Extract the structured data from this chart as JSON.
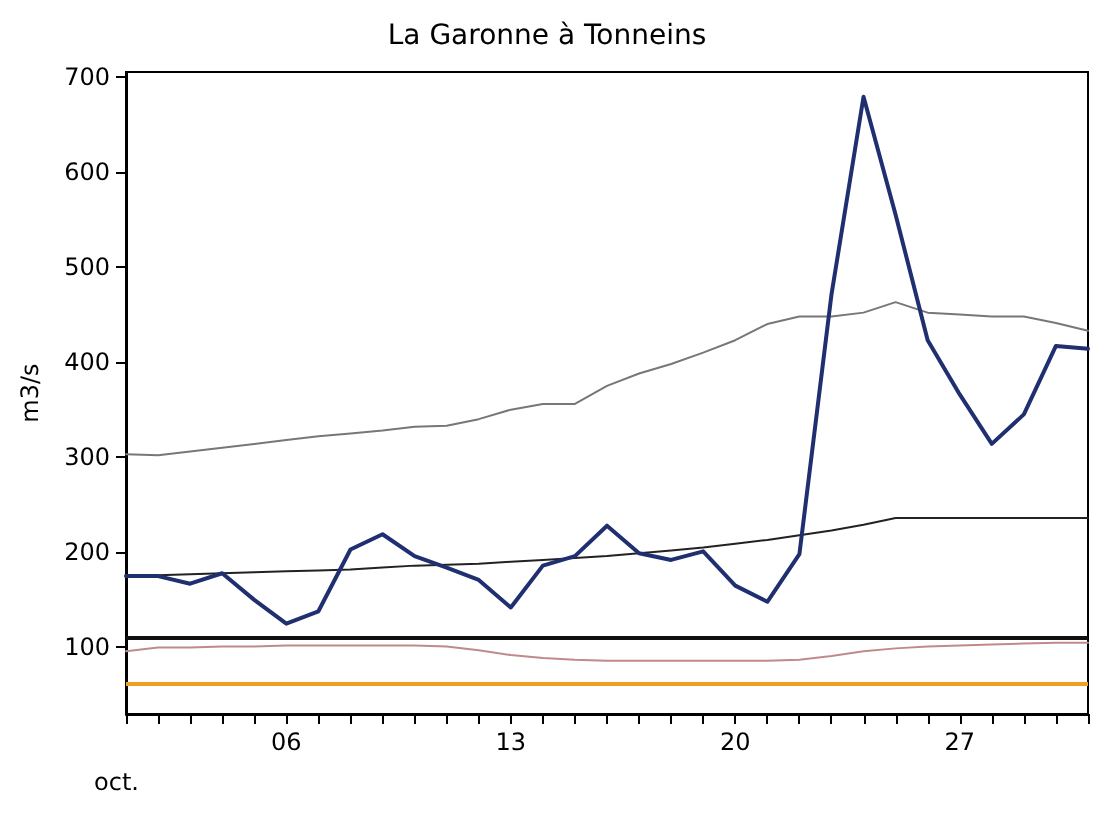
{
  "chart_data": {
    "type": "line",
    "title": "La Garonne à Tonneins",
    "ylabel": "m3/s",
    "annotations": [
      "oct."
    ],
    "x": [
      1,
      2,
      3,
      4,
      5,
      6,
      7,
      8,
      9,
      10,
      11,
      12,
      13,
      14,
      15,
      16,
      17,
      18,
      19,
      20,
      21,
      22,
      23,
      24,
      25,
      26,
      27,
      28,
      29,
      30,
      31
    ],
    "series": [
      {
        "color": "#777777",
        "values": [
          303,
          302,
          306,
          310,
          314,
          318,
          322,
          325,
          328,
          332,
          333,
          340,
          350,
          356,
          356,
          375,
          388,
          398,
          410,
          423,
          440,
          448,
          448,
          452,
          463,
          452,
          450,
          448,
          448,
          441,
          433
        ]
      },
      {
        "color": "#c08a8a",
        "values": [
          96,
          100,
          100,
          101,
          101,
          102,
          102,
          102,
          102,
          102,
          101,
          97,
          92,
          89,
          87,
          86,
          86,
          86,
          86,
          86,
          86,
          87,
          91,
          96,
          99,
          101,
          102,
          103,
          104,
          105,
          105
        ]
      },
      {
        "color": "#222222",
        "values": [
          175,
          176,
          177,
          178,
          179,
          180,
          181,
          182,
          184,
          186,
          187,
          188,
          190,
          192,
          194,
          196,
          199,
          202,
          205,
          209,
          213,
          218,
          223,
          229,
          236,
          236,
          236,
          236,
          236,
          236,
          236
        ]
      },
      {
        "color": "#1f2f70",
        "values": [
          175,
          175,
          167,
          178,
          150,
          125,
          138,
          203,
          219,
          196,
          184,
          171,
          142,
          186,
          196,
          228,
          199,
          192,
          201,
          165,
          148,
          198,
          471,
          679,
          555,
          423,
          366,
          314,
          345,
          417,
          414
        ]
      }
    ],
    "ref_lines": [
      {
        "axis": "y",
        "value": 111,
        "color": "#111111"
      },
      {
        "axis": "y",
        "value": 62,
        "color": "#f0a020"
      }
    ],
    "xlim": [
      1,
      31
    ],
    "xticks": [
      {
        "value": 1,
        "label": null
      },
      {
        "value": 2,
        "label": null
      },
      {
        "value": 3,
        "label": null
      },
      {
        "value": 4,
        "label": null
      },
      {
        "value": 5,
        "label": null
      },
      {
        "value": 6,
        "label": "06"
      },
      {
        "value": 7,
        "label": null
      },
      {
        "value": 8,
        "label": null
      },
      {
        "value": 9,
        "label": null
      },
      {
        "value": 10,
        "label": null
      },
      {
        "value": 11,
        "label": null
      },
      {
        "value": 12,
        "label": null
      },
      {
        "value": 13,
        "label": "13"
      },
      {
        "value": 14,
        "label": null
      },
      {
        "value": 15,
        "label": null
      },
      {
        "value": 16,
        "label": null
      },
      {
        "value": 17,
        "label": null
      },
      {
        "value": 18,
        "label": null
      },
      {
        "value": 19,
        "label": null
      },
      {
        "value": 20,
        "label": "20"
      },
      {
        "value": 21,
        "label": null
      },
      {
        "value": 22,
        "label": null
      },
      {
        "value": 23,
        "label": null
      },
      {
        "value": 24,
        "label": null
      },
      {
        "value": 25,
        "label": null
      },
      {
        "value": 26,
        "label": null
      },
      {
        "value": 27,
        "label": "27"
      },
      {
        "value": 28,
        "label": null
      },
      {
        "value": 29,
        "label": null
      },
      {
        "value": 30,
        "label": null
      },
      {
        "value": 31,
        "label": null
      }
    ],
    "ylim": [
      30,
      705
    ],
    "yticks": [
      100,
      200,
      300,
      400,
      500,
      600,
      700
    ],
    "grid": false,
    "marker": "none",
    "line_style": "solid"
  }
}
